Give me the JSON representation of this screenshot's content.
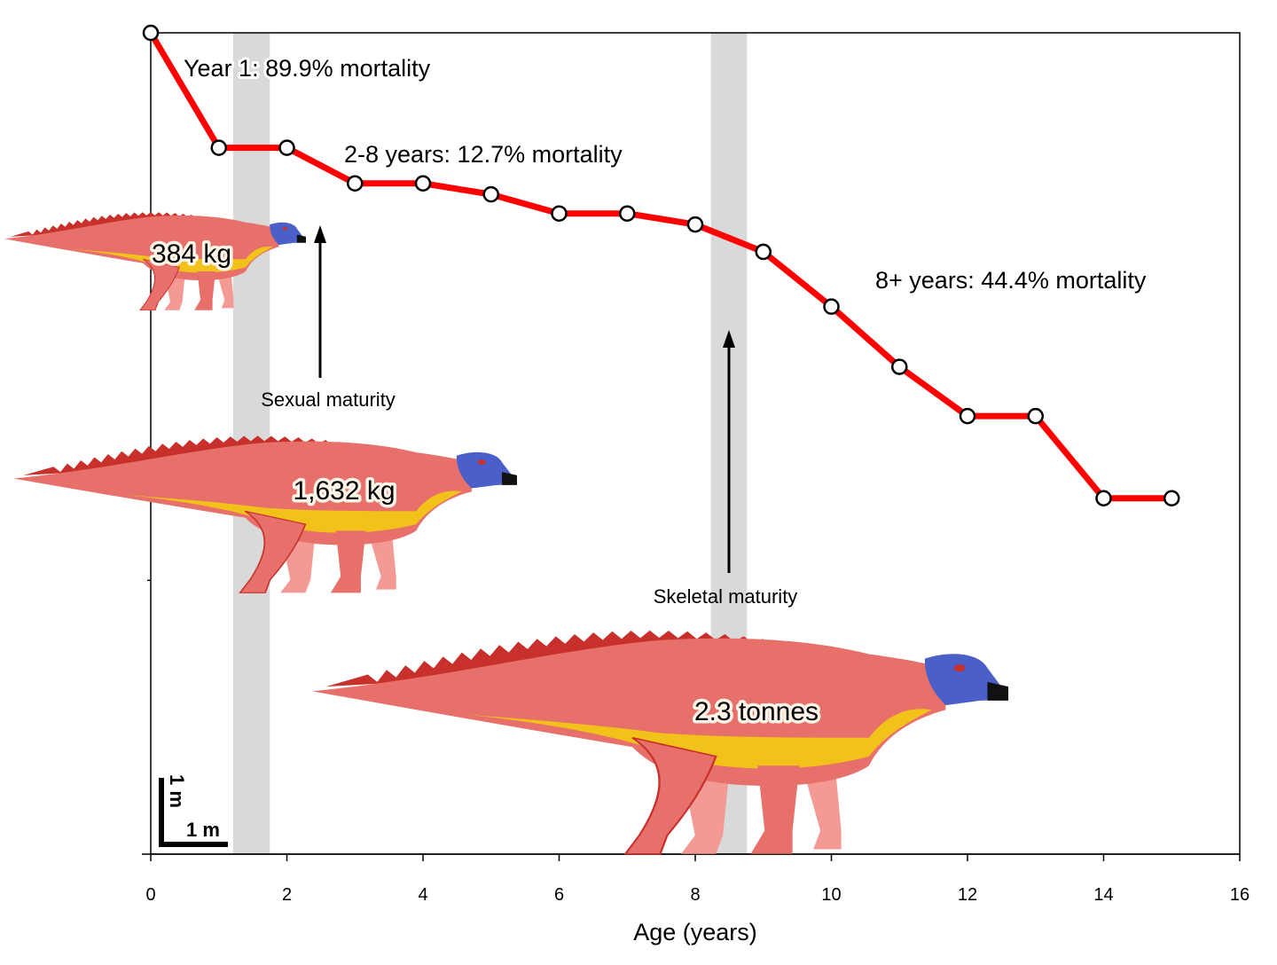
{
  "chart_data": {
    "type": "line",
    "xlabel": "Age (years)",
    "ylabel": "",
    "xlim": [
      0,
      16
    ],
    "xticks": [
      0,
      2,
      4,
      6,
      8,
      10,
      12,
      14,
      16
    ],
    "ylim": [
      0,
      3
    ],
    "yticks_unlabeled": [
      1,
      2
    ],
    "grid": false,
    "series": [
      {
        "color": "#ff0000",
        "marker": "open-circle",
        "x": [
          0,
          1,
          2,
          3,
          4,
          5,
          6,
          7,
          8,
          9,
          10,
          11,
          12,
          13,
          14,
          15
        ],
        "y": [
          3.0,
          2.58,
          2.58,
          2.45,
          2.45,
          2.41,
          2.34,
          2.34,
          2.3,
          2.2,
          2.0,
          1.78,
          1.6,
          1.6,
          1.3,
          1.3
        ]
      }
    ],
    "shaded_bands": [
      {
        "x": [
          1.21,
          1.75
        ],
        "color": "#d9d9d9"
      },
      {
        "x": [
          8.23,
          8.76
        ],
        "color": "#d9d9d9"
      }
    ],
    "annotations": {
      "year1": "Year 1: 89.9% mortality",
      "mid": "2-8 years: 12.7% mortality",
      "late": "8+ years: 44.4% mortality",
      "sexual": "Sexual maturity",
      "skeletal": "Skeletal maturity",
      "mass1": "384 kg",
      "mass2": "1,632 kg",
      "mass3": "2.3 tonnes",
      "scale_v": "1 m",
      "scale_h": "1 m"
    },
    "colors": {
      "body": "#e8706a",
      "belly": "#f2c21a",
      "head": "#4a5fc8",
      "crest": "#c8302c"
    }
  }
}
